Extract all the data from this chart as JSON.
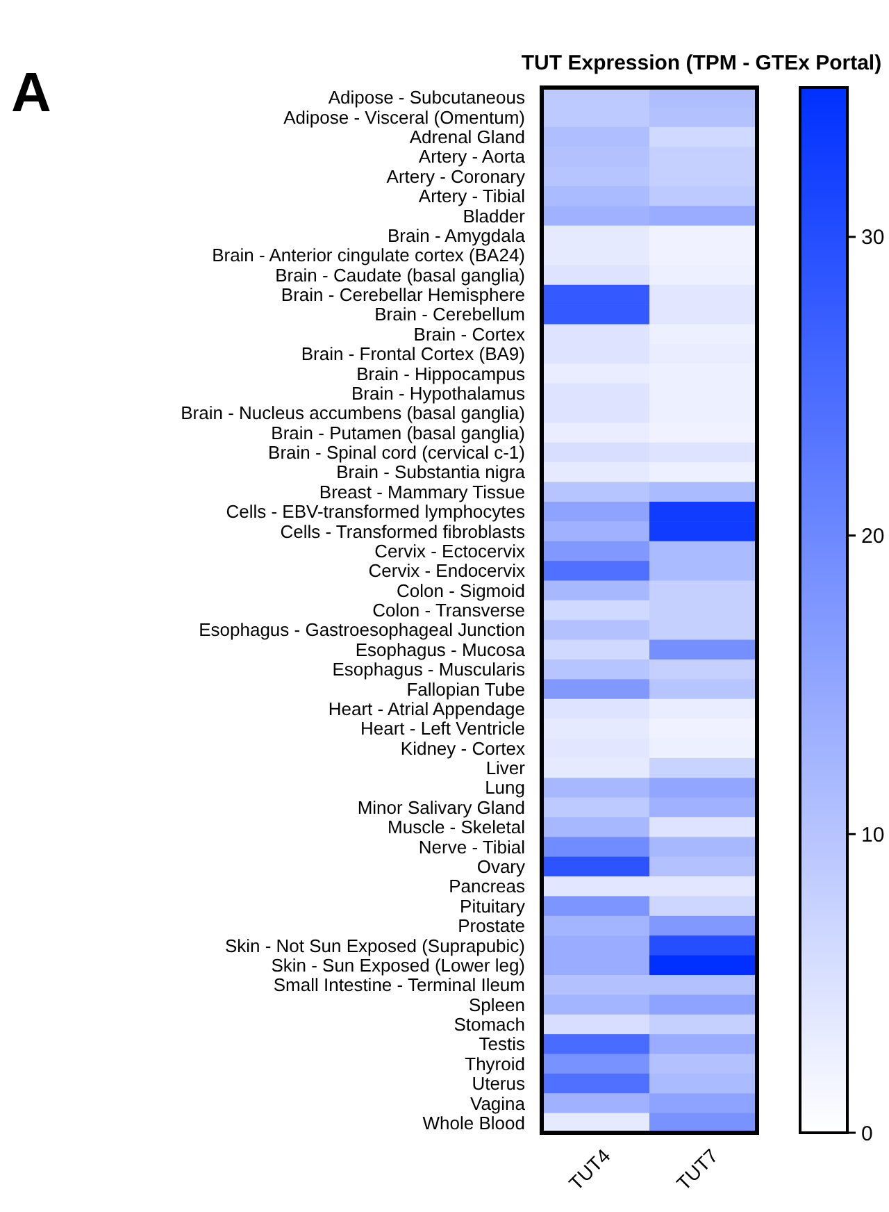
{
  "chart_data": {
    "type": "heatmap",
    "title": "TUT Expression (TPM - GTEx Portal)",
    "annotations": [
      "A"
    ],
    "categories": [
      "TUT4",
      "TUT7"
    ],
    "y_categories": [
      "Adipose - Subcutaneous",
      "Adipose - Visceral (Omentum)",
      "Adrenal Gland",
      "Artery - Aorta",
      "Artery - Coronary",
      "Artery - Tibial",
      "Bladder",
      "Brain - Amygdala",
      "Brain - Anterior cingulate cortex (BA24)",
      "Brain - Caudate (basal ganglia)",
      "Brain - Cerebellar Hemisphere",
      "Brain - Cerebellum",
      "Brain - Cortex",
      "Brain - Frontal Cortex (BA9)",
      "Brain - Hippocampus",
      "Brain - Hypothalamus",
      "Brain - Nucleus accumbens (basal ganglia)",
      "Brain - Putamen (basal ganglia)",
      "Brain - Spinal cord (cervical c-1)",
      "Brain - Substantia nigra",
      "Breast - Mammary Tissue",
      "Cells - EBV-transformed lymphocytes",
      "Cells - Transformed fibroblasts",
      "Cervix - Ectocervix",
      "Cervix - Endocervix",
      "Colon - Sigmoid",
      "Colon - Transverse",
      "Esophagus - Gastroesophageal Junction",
      "Esophagus - Mucosa",
      "Esophagus - Muscularis",
      "Fallopian Tube",
      "Heart - Atrial Appendage",
      "Heart - Left Ventricle",
      "Kidney - Cortex",
      "Liver",
      "Lung",
      "Minor Salivary Gland",
      "Muscle - Skeletal",
      "Nerve - Tibial",
      "Ovary",
      "Pancreas",
      "Pituitary",
      "Prostate",
      "Skin - Not Sun Exposed (Suprapubic)",
      "Skin - Sun Exposed (Lower leg)",
      "Small Intestine - Terminal Ileum",
      "Spleen",
      "Stomach",
      "Testis",
      "Thyroid",
      "Uterus",
      "Vagina",
      "Whole Blood"
    ],
    "cells": [
      [
        9,
        11
      ],
      [
        9,
        10.5
      ],
      [
        11,
        6.5
      ],
      [
        10.5,
        8
      ],
      [
        10,
        8
      ],
      [
        11.5,
        9
      ],
      [
        13,
        14
      ],
      [
        3.5,
        2
      ],
      [
        3.5,
        2
      ],
      [
        4.5,
        2.5
      ],
      [
        28,
        4
      ],
      [
        28,
        4
      ],
      [
        4.5,
        2.5
      ],
      [
        4.5,
        3
      ],
      [
        3,
        2.5
      ],
      [
        4.5,
        2.5
      ],
      [
        4.5,
        2.5
      ],
      [
        3,
        2
      ],
      [
        5.5,
        4.5
      ],
      [
        3.5,
        2.5
      ],
      [
        10,
        11.5
      ],
      [
        15.5,
        33
      ],
      [
        13,
        33
      ],
      [
        17.5,
        11.5
      ],
      [
        24,
        11.5
      ],
      [
        12,
        8
      ],
      [
        6.5,
        8
      ],
      [
        10.5,
        8
      ],
      [
        6.5,
        19
      ],
      [
        10,
        8
      ],
      [
        17.5,
        10
      ],
      [
        4.5,
        3
      ],
      [
        3.5,
        2
      ],
      [
        4,
        2.5
      ],
      [
        3.5,
        7.5
      ],
      [
        12,
        15
      ],
      [
        9,
        13
      ],
      [
        12,
        4.5
      ],
      [
        19.5,
        12
      ],
      [
        29,
        10.5
      ],
      [
        4,
        4
      ],
      [
        18,
        7
      ],
      [
        12.5,
        17.5
      ],
      [
        14,
        30
      ],
      [
        14,
        35
      ],
      [
        10.5,
        10.5
      ],
      [
        12.5,
        15.5
      ],
      [
        5.5,
        8
      ],
      [
        25,
        14
      ],
      [
        18.5,
        10.5
      ],
      [
        24,
        11.5
      ],
      [
        13,
        15.5
      ],
      [
        3.5,
        18.5
      ]
    ],
    "colors": [
      "#ffffff",
      "#0030ff"
    ],
    "clim": [
      0,
      35
    ],
    "cticks": [
      0,
      10,
      20,
      30
    ]
  }
}
